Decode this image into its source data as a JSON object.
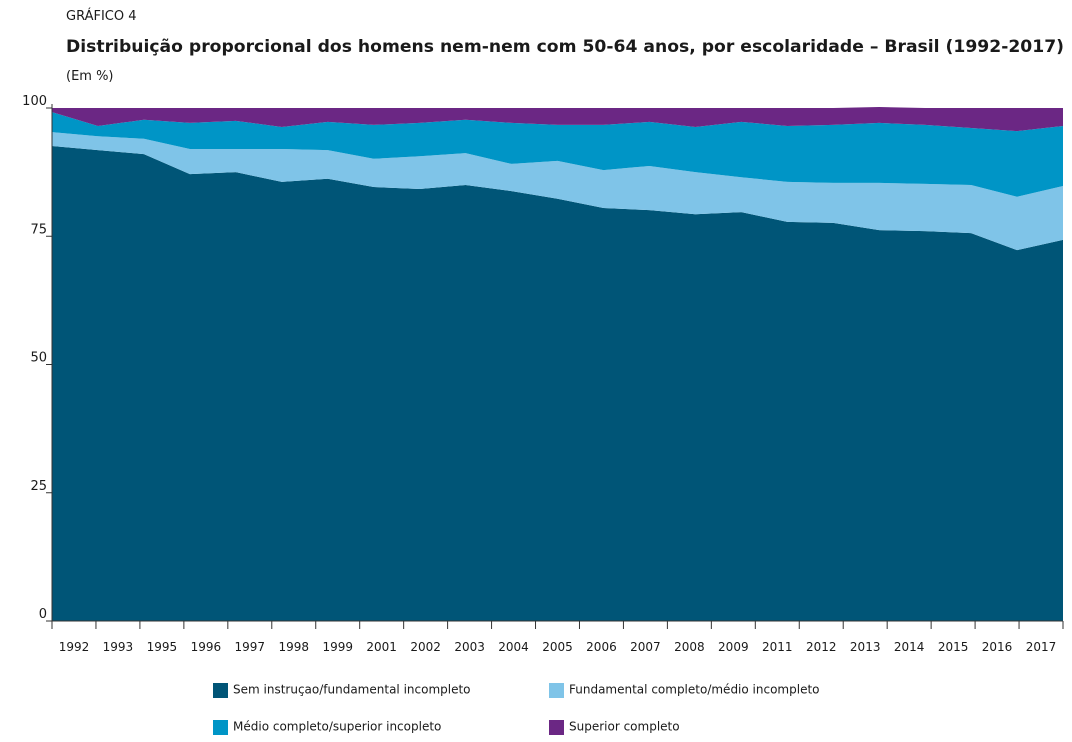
{
  "kicker": "GRÁFICO 4",
  "chart_data": {
    "type": "stacked-area",
    "title": "Distribuição proporcional dos homens nem-nem com 50-64 anos, por escolaridade – Brasil (1992-2017)",
    "subtitle": "(Em %)",
    "categories": [
      "1992",
      "1993",
      "1995",
      "1996",
      "1997",
      "1998",
      "1999",
      "2001",
      "2002",
      "2003",
      "2004",
      "2005",
      "2006",
      "2007",
      "2008",
      "2009",
      "2011",
      "2012",
      "2013",
      "2014",
      "2015",
      "2016",
      "2017"
    ],
    "series": [
      {
        "name": "Sem instruçao/fundamental incompleto",
        "color": "#005577",
        "values": [
          92.6,
          91.8,
          91.0,
          87.1,
          87.5,
          85.6,
          86.2,
          84.6,
          84.2,
          85.0,
          83.8,
          82.3,
          80.5,
          80.1,
          79.3,
          79.7,
          77.8,
          77.6,
          76.2,
          76.0,
          75.6,
          72.3,
          74.3
        ]
      },
      {
        "name": "Fundamental completo/médio incompleto",
        "color": "#7fc4e8",
        "values": [
          2.7,
          2.7,
          3.0,
          4.9,
          4.5,
          6.4,
          5.6,
          5.5,
          6.4,
          6.2,
          5.3,
          7.4,
          7.4,
          8.6,
          8.2,
          6.8,
          7.8,
          7.8,
          9.2,
          9.2,
          9.4,
          10.4,
          10.5
        ]
      },
      {
        "name": "Médio completo/superior incopleto",
        "color": "#0095c6",
        "values": [
          3.9,
          2.0,
          3.7,
          5.1,
          5.5,
          4.3,
          5.5,
          6.6,
          6.5,
          6.5,
          8.0,
          7.0,
          8.8,
          8.6,
          8.8,
          10.8,
          10.9,
          11.3,
          11.7,
          11.5,
          11.1,
          12.8,
          11.7
        ]
      },
      {
        "name": "Superior completo",
        "color": "#6b2784",
        "values": [
          0.8,
          3.5,
          2.3,
          2.9,
          2.5,
          3.7,
          2.7,
          3.3,
          2.9,
          2.3,
          2.9,
          3.3,
          3.3,
          2.7,
          3.7,
          2.7,
          3.5,
          3.3,
          3.1,
          3.3,
          3.9,
          4.5,
          3.5
        ]
      }
    ],
    "ylim": [
      0,
      100
    ],
    "yticks": [
      0,
      25,
      50,
      75,
      100
    ]
  }
}
